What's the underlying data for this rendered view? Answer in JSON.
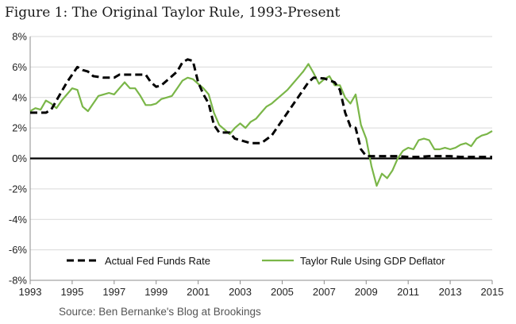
{
  "chart_data": {
    "type": "line",
    "title": "Figure 1: The Original Taylor Rule, 1993-Present",
    "source": "Source: Ben Bernanke's Blog at Brookings",
    "xlim": [
      1993,
      2015
    ],
    "ylim": [
      -8,
      8
    ],
    "x_ticks": [
      1993,
      1995,
      1997,
      1999,
      2001,
      2003,
      2005,
      2007,
      2009,
      2011,
      2013,
      2015
    ],
    "x_tick_labels": [
      "1993",
      "1995",
      "1997",
      "1999",
      "2001",
      "2003",
      "2005",
      "2007",
      "2009",
      "2011",
      "2013",
      "2015"
    ],
    "y_ticks": [
      -8,
      -6,
      -4,
      -2,
      0,
      2,
      4,
      6,
      8
    ],
    "y_tick_labels": [
      "-8%",
      "-6%",
      "-4%",
      "-2%",
      "0%",
      "2%",
      "4%",
      "6%",
      "8%"
    ],
    "grid": "horizontal",
    "zero_line": true,
    "legend_position": "bottom",
    "series": [
      {
        "name": "Actual Fed Funds Rate",
        "style": "dashed",
        "color": "#000000",
        "x": [
          1993.0,
          1993.25,
          1993.5,
          1993.75,
          1994.0,
          1994.25,
          1994.5,
          1994.75,
          1995.0,
          1995.25,
          1995.5,
          1995.75,
          1996.0,
          1996.5,
          1997.0,
          1997.25,
          1997.5,
          1998.0,
          1998.5,
          1998.75,
          1999.0,
          1999.25,
          1999.5,
          1999.75,
          2000.0,
          2000.25,
          2000.5,
          2000.75,
          2001.0,
          2001.25,
          2001.5,
          2001.75,
          2002.0,
          2002.5,
          2002.75,
          2003.0,
          2003.5,
          2004.0,
          2004.5,
          2004.75,
          2005.0,
          2005.25,
          2005.5,
          2005.75,
          2006.0,
          2006.25,
          2006.5,
          2007.0,
          2007.5,
          2007.75,
          2008.0,
          2008.25,
          2008.5,
          2008.75,
          2009.0,
          2009.5,
          2010.0,
          2010.5,
          2011.0,
          2011.5,
          2012.0,
          2012.5,
          2013.0,
          2013.5,
          2014.0,
          2014.5,
          2015.0
        ],
        "values": [
          3.0,
          3.0,
          3.0,
          3.0,
          3.2,
          3.8,
          4.4,
          5.0,
          5.5,
          6.0,
          5.8,
          5.7,
          5.4,
          5.3,
          5.3,
          5.5,
          5.5,
          5.5,
          5.5,
          5.0,
          4.7,
          4.8,
          5.1,
          5.4,
          5.7,
          6.3,
          6.5,
          6.4,
          5.0,
          4.2,
          3.6,
          2.2,
          1.7,
          1.7,
          1.3,
          1.2,
          1.0,
          1.0,
          1.5,
          2.0,
          2.5,
          3.0,
          3.5,
          4.0,
          4.5,
          5.0,
          5.3,
          5.25,
          5.0,
          4.5,
          3.0,
          2.1,
          2.0,
          0.6,
          0.15,
          0.15,
          0.15,
          0.15,
          0.1,
          0.1,
          0.15,
          0.15,
          0.15,
          0.1,
          0.1,
          0.1,
          0.1
        ]
      },
      {
        "name": "Taylor Rule Using GDP Deflator",
        "style": "solid",
        "color": "#7ab648",
        "x": [
          1993.0,
          1993.25,
          1993.5,
          1993.75,
          1994.0,
          1994.25,
          1994.5,
          1994.75,
          1995.0,
          1995.25,
          1995.5,
          1995.75,
          1996.0,
          1996.25,
          1996.5,
          1996.75,
          1997.0,
          1997.25,
          1997.5,
          1997.75,
          1998.0,
          1998.25,
          1998.5,
          1998.75,
          1999.0,
          1999.25,
          1999.5,
          1999.75,
          2000.0,
          2000.25,
          2000.5,
          2000.75,
          2001.0,
          2001.25,
          2001.5,
          2001.75,
          2002.0,
          2002.25,
          2002.5,
          2002.75,
          2003.0,
          2003.25,
          2003.5,
          2003.75,
          2004.0,
          2004.25,
          2004.5,
          2004.75,
          2005.0,
          2005.25,
          2005.5,
          2005.75,
          2006.0,
          2006.25,
          2006.5,
          2006.75,
          2007.0,
          2007.25,
          2007.5,
          2007.75,
          2008.0,
          2008.25,
          2008.5,
          2008.75,
          2009.0,
          2009.25,
          2009.5,
          2009.75,
          2010.0,
          2010.25,
          2010.5,
          2010.75,
          2011.0,
          2011.25,
          2011.5,
          2011.75,
          2012.0,
          2012.25,
          2012.5,
          2012.75,
          2013.0,
          2013.25,
          2013.5,
          2013.75,
          2014.0,
          2014.25,
          2014.5,
          2014.75,
          2015.0
        ],
        "values": [
          3.1,
          3.3,
          3.2,
          3.8,
          3.6,
          3.3,
          3.8,
          4.2,
          4.6,
          4.5,
          3.4,
          3.1,
          3.6,
          4.1,
          4.2,
          4.3,
          4.2,
          4.6,
          5.0,
          4.6,
          4.6,
          4.1,
          3.5,
          3.5,
          3.6,
          3.9,
          4.0,
          4.1,
          4.6,
          5.1,
          5.3,
          5.2,
          4.9,
          4.6,
          4.2,
          3.0,
          2.2,
          1.9,
          1.6,
          2.0,
          2.3,
          2.0,
          2.4,
          2.6,
          3.0,
          3.4,
          3.6,
          3.9,
          4.2,
          4.5,
          4.9,
          5.3,
          5.7,
          6.2,
          5.6,
          4.9,
          5.2,
          5.4,
          4.8,
          4.8,
          4.0,
          3.6,
          4.2,
          2.2,
          1.3,
          -0.5,
          -1.8,
          -1.0,
          -1.3,
          -0.8,
          0.0,
          0.5,
          0.7,
          0.6,
          1.2,
          1.3,
          1.2,
          0.6,
          0.6,
          0.7,
          0.6,
          0.7,
          0.9,
          1.0,
          0.8,
          1.3,
          1.5,
          1.6,
          1.8
        ]
      }
    ]
  }
}
